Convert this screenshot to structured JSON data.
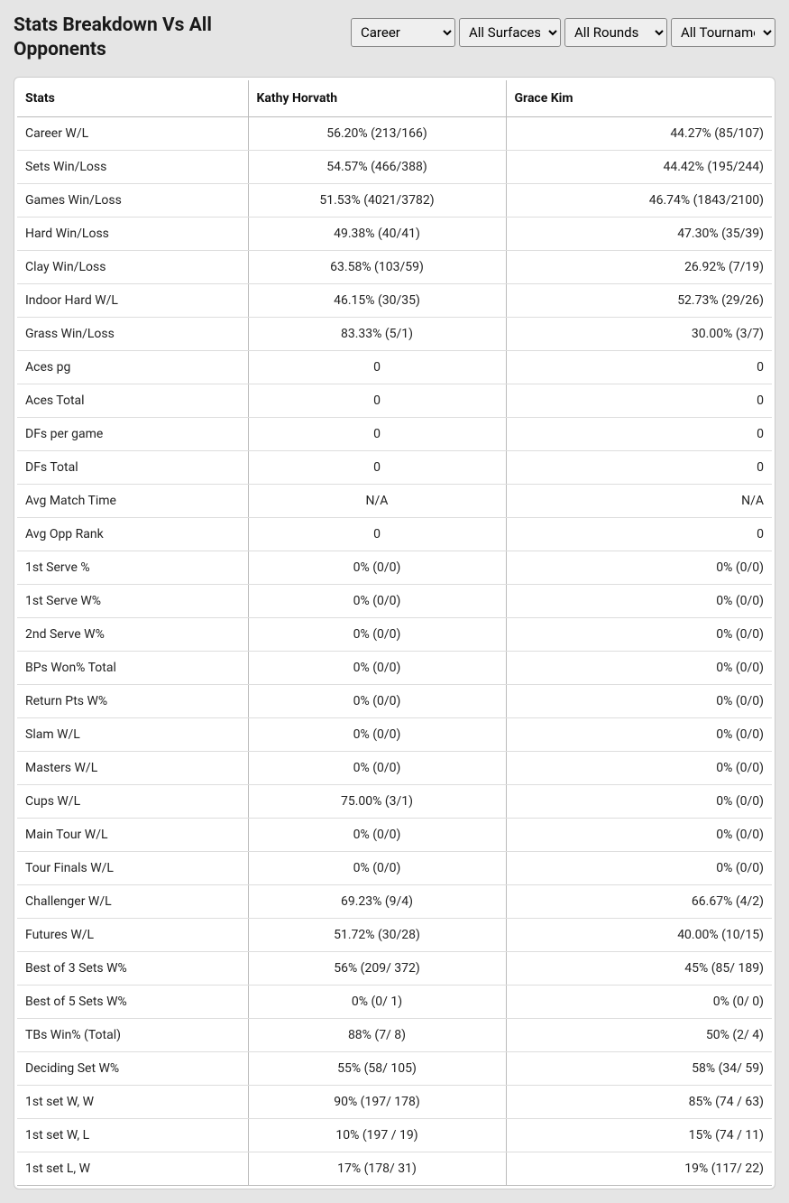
{
  "title": "Stats Breakdown Vs All Opponents",
  "filters": {
    "career": "Career",
    "surface": "All Surfaces",
    "rounds": "All Rounds",
    "tourn": "All Tournaments"
  },
  "columns": {
    "stats": "Stats",
    "player1": "Kathy Horvath",
    "player2": "Grace Kim"
  },
  "rows": [
    {
      "label": "Career W/L",
      "p1": "56.20% (213/166)",
      "p2": "44.27% (85/107)"
    },
    {
      "label": "Sets Win/Loss",
      "p1": "54.57% (466/388)",
      "p2": "44.42% (195/244)"
    },
    {
      "label": "Games Win/Loss",
      "p1": "51.53% (4021/3782)",
      "p2": "46.74% (1843/2100)"
    },
    {
      "label": "Hard Win/Loss",
      "p1": "49.38% (40/41)",
      "p2": "47.30% (35/39)"
    },
    {
      "label": "Clay Win/Loss",
      "p1": "63.58% (103/59)",
      "p2": "26.92% (7/19)"
    },
    {
      "label": "Indoor Hard W/L",
      "p1": "46.15% (30/35)",
      "p2": "52.73% (29/26)"
    },
    {
      "label": "Grass Win/Loss",
      "p1": "83.33% (5/1)",
      "p2": "30.00% (3/7)"
    },
    {
      "label": "Aces pg",
      "p1": "0",
      "p2": "0"
    },
    {
      "label": "Aces Total",
      "p1": "0",
      "p2": "0"
    },
    {
      "label": "DFs per game",
      "p1": "0",
      "p2": "0"
    },
    {
      "label": "DFs Total",
      "p1": "0",
      "p2": "0"
    },
    {
      "label": "Avg Match Time",
      "p1": "N/A",
      "p2": "N/A"
    },
    {
      "label": "Avg Opp Rank",
      "p1": "0",
      "p2": "0"
    },
    {
      "label": "1st Serve %",
      "p1": "0% (0/0)",
      "p2": "0% (0/0)"
    },
    {
      "label": "1st Serve W%",
      "p1": "0% (0/0)",
      "p2": "0% (0/0)"
    },
    {
      "label": "2nd Serve W%",
      "p1": "0% (0/0)",
      "p2": "0% (0/0)"
    },
    {
      "label": "BPs Won% Total",
      "p1": "0% (0/0)",
      "p2": "0% (0/0)"
    },
    {
      "label": "Return Pts W%",
      "p1": "0% (0/0)",
      "p2": "0% (0/0)"
    },
    {
      "label": "Slam W/L",
      "p1": "0% (0/0)",
      "p2": "0% (0/0)"
    },
    {
      "label": "Masters W/L",
      "p1": "0% (0/0)",
      "p2": "0% (0/0)"
    },
    {
      "label": "Cups W/L",
      "p1": "75.00% (3/1)",
      "p2": "0% (0/0)"
    },
    {
      "label": "Main Tour W/L",
      "p1": "0% (0/0)",
      "p2": "0% (0/0)"
    },
    {
      "label": "Tour Finals W/L",
      "p1": "0% (0/0)",
      "p2": "0% (0/0)"
    },
    {
      "label": "Challenger W/L",
      "p1": "69.23% (9/4)",
      "p2": "66.67% (4/2)"
    },
    {
      "label": "Futures W/L",
      "p1": "51.72% (30/28)",
      "p2": "40.00% (10/15)"
    },
    {
      "label": "Best of 3 Sets W%",
      "p1": "56% (209/ 372)",
      "p2": "45% (85/ 189)"
    },
    {
      "label": "Best of 5 Sets W%",
      "p1": "0% (0/ 1)",
      "p2": "0% (0/ 0)"
    },
    {
      "label": "TBs Win% (Total)",
      "p1": "88% (7/ 8)",
      "p2": "50% (2/ 4)"
    },
    {
      "label": "Deciding Set W%",
      "p1": "55% (58/ 105)",
      "p2": "58% (34/ 59)"
    },
    {
      "label": "1st set W, W",
      "p1": "90% (197/ 178)",
      "p2": "85% (74 / 63)"
    },
    {
      "label": "1st set W, L",
      "p1": "10% (197 / 19)",
      "p2": "15% (74 / 11)"
    },
    {
      "label": "1st set L, W",
      "p1": "17% (178/ 31)",
      "p2": "19% (117/ 22)"
    }
  ]
}
